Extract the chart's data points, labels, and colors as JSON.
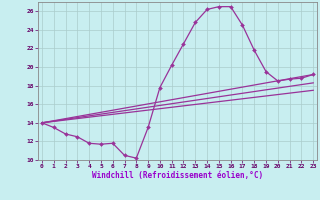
{
  "xlabel": "Windchill (Refroidissement éolien,°C)",
  "bg_color": "#c8eef0",
  "axis_bg_color": "#9999cc",
  "line_color": "#993399",
  "grid_color": "#aacccc",
  "xlim": [
    0,
    23
  ],
  "ylim": [
    10,
    27
  ],
  "yticks": [
    10,
    12,
    14,
    16,
    18,
    20,
    22,
    24,
    26
  ],
  "xticks": [
    0,
    1,
    2,
    3,
    4,
    5,
    6,
    7,
    8,
    9,
    10,
    11,
    12,
    13,
    14,
    15,
    16,
    17,
    18,
    19,
    20,
    21,
    22,
    23
  ],
  "main_x": [
    0,
    1,
    2,
    3,
    4,
    5,
    6,
    7,
    8,
    9,
    10,
    11,
    12,
    13,
    14,
    15,
    16,
    17,
    18,
    19,
    20,
    21,
    22,
    23
  ],
  "main_y": [
    14.0,
    13.5,
    12.8,
    12.5,
    11.8,
    11.7,
    11.8,
    10.5,
    10.2,
    13.5,
    17.8,
    20.2,
    22.5,
    24.8,
    26.2,
    26.5,
    26.5,
    24.5,
    21.8,
    19.5,
    18.5,
    18.7,
    18.8,
    19.2
  ],
  "line1_x": [
    0,
    23
  ],
  "line1_y": [
    14.0,
    17.5
  ],
  "line2_x": [
    0,
    23
  ],
  "line2_y": [
    14.0,
    18.3
  ],
  "line3_x": [
    0,
    23
  ],
  "line3_y": [
    14.0,
    19.2
  ],
  "figsize": [
    3.2,
    2.0
  ],
  "dpi": 100
}
